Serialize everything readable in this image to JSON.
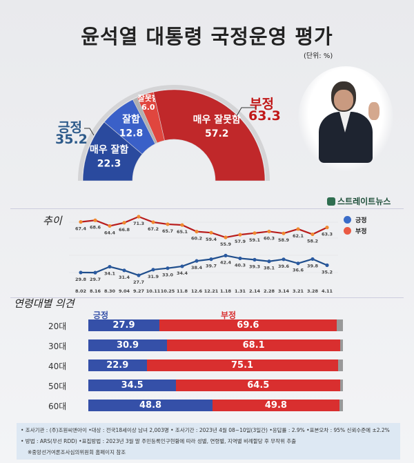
{
  "title": "윤석열 대통령 국정운영 평가",
  "unit": "(단위: %)",
  "logo": "스트레이트뉴스",
  "chart_data": [
    {
      "type": "pie",
      "subtype": "semi-donut",
      "slices": [
        {
          "label": "매우 잘함",
          "value": 22.3,
          "color": "#2a4a9e"
        },
        {
          "label": "잘함",
          "value": 12.8,
          "color": "#3a60c8"
        },
        {
          "label": "",
          "value": 1.7,
          "color": "#b0b0b0"
        },
        {
          "label": "잘못함",
          "value": 6.0,
          "color": "#e0463e"
        },
        {
          "label": "매우 잘못함",
          "value": 57.2,
          "color": "#c0282a"
        }
      ],
      "groups": [
        {
          "label": "긍정",
          "value": "35.2",
          "color": "#2d5a8a"
        },
        {
          "label": "부정",
          "value": "63.3",
          "color": "#c01818"
        }
      ]
    },
    {
      "type": "line",
      "title": "추이",
      "categories": [
        "8.02",
        "8.16",
        "8.30",
        "9.04",
        "9.27",
        "10.11",
        "10.25",
        "11.8",
        "12.6",
        "12.21",
        "1.18",
        "1.31",
        "2.14",
        "2.28",
        "3.14",
        "3.21",
        "3.28",
        "4.11"
      ],
      "series": [
        {
          "name": "긍정",
          "color": "#1f4e8c",
          "marker": "#2a5aa0",
          "values": [
            29.8,
            29.7,
            34.1,
            31.4,
            27.7,
            31.9,
            33.0,
            34.4,
            38.4,
            39.7,
            42.4,
            40.3,
            39.3,
            38.1,
            39.6,
            36.6,
            39.8,
            35.2
          ]
        },
        {
          "name": "부정",
          "color": "#b81c1c",
          "marker": "#f08a30",
          "values": [
            67.4,
            68.6,
            64.4,
            66.8,
            71.3,
            67.2,
            65.7,
            65.1,
            60.2,
            59.4,
            55.9,
            57.9,
            59.1,
            60.3,
            58.9,
            62.1,
            58.2,
            63.3
          ]
        }
      ],
      "legend": [
        {
          "label": "긍정",
          "color": "#3a6cc8"
        },
        {
          "label": "부정",
          "color": "#ea5a44"
        }
      ],
      "legend_position": "right"
    },
    {
      "type": "bar",
      "subtype": "stacked-horizontal",
      "title": "연령대별 의견",
      "series_labels": {
        "pos": "긍정",
        "neg": "부정"
      },
      "colors": {
        "pos": "#3550a8",
        "neg": "#d92f2f",
        "rest": "#999999"
      },
      "categories": [
        "20대",
        "30대",
        "40대",
        "50대",
        "60대"
      ],
      "pos": [
        27.9,
        30.9,
        22.9,
        34.5,
        48.8
      ],
      "neg": [
        69.6,
        68.1,
        75.1,
        64.5,
        49.8
      ]
    }
  ],
  "footer": {
    "line1": "• 조사기관 : (주)조원씨앤아이   •대상 : 전국18세이상 남녀 2,003명   • 조사기간 : 2023년 4월 08~10일(3일간)   •응답률 : 2.9%  •표본오차 : 95% 신뢰수준에 ±2.2%",
    "line2": "• 방법 : ARS(무선 RDD)   •표집방법 : 2023년 3월 말 주민등록인구현황에 따라 성별, 연령별, 지역별 비례할당 후 무작위 추출",
    "line3": "※중앙선거여론조사심의위원회 홈페이지 참조"
  }
}
